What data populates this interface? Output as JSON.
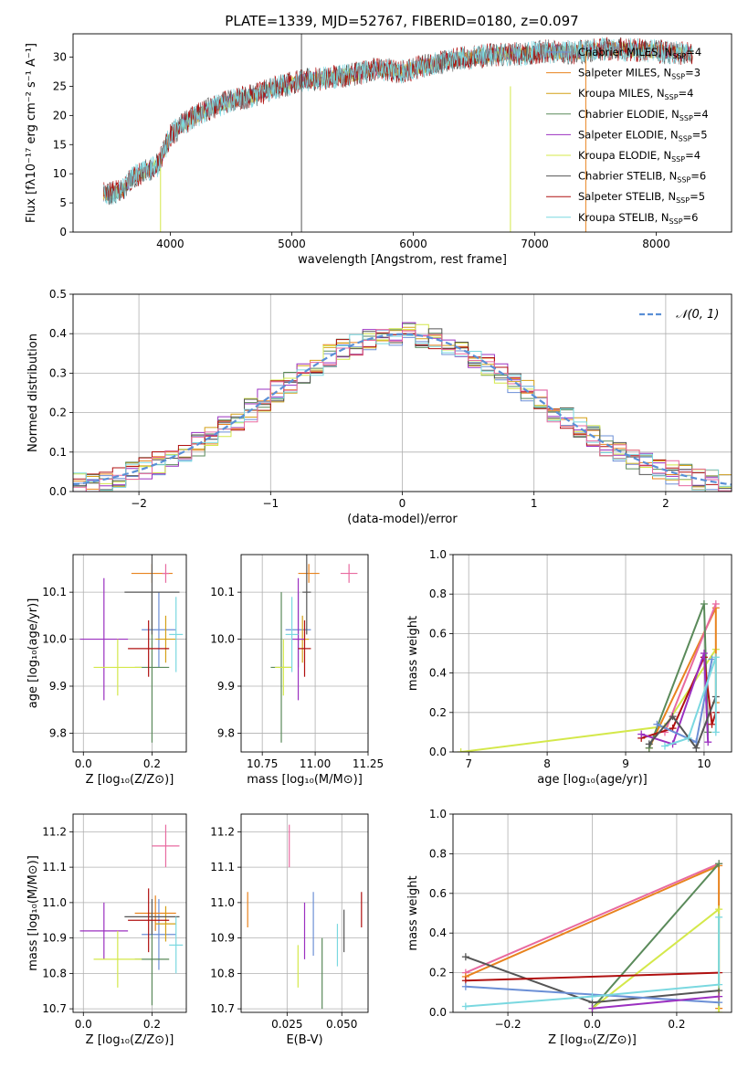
{
  "title": "PLATE=1339, MJD=52767, FIBERID=0180, z=0.097",
  "styles": {
    "Chabrier MILES": "#6b8fd6",
    "Salpeter MILES": "#e8831e",
    "Kroupa MILES": "#d4a017",
    "Chabrier ELODIE": "#5a8a5a",
    "Salpeter ELODIE": "#9b30c0",
    "Kroupa ELODIE": "#d4e84a",
    "Chabrier STELIB": "#555555",
    "Salpeter STELIB": "#b01010",
    "Kroupa STELIB": "#7ad8e0",
    "normal_curve": "#5a8fd6",
    "hist_pink": "#e86aa0"
  },
  "chart_data": [
    {
      "id": "spectrum",
      "type": "line",
      "xlabel": "wavelength [Angstrom, rest frame]",
      "ylabel": "Flux [fλ10⁻¹⁷ erg cm⁻² s⁻¹ A⁻¹]",
      "xlim": [
        3200,
        8620
      ],
      "ylim": [
        0,
        34
      ],
      "xticks": [
        "4000",
        "5000",
        "6000",
        "7000",
        "8000"
      ],
      "yticks": [
        "0",
        "5",
        "10",
        "15",
        "20",
        "25",
        "30"
      ],
      "legend_position": "top-right",
      "legend": [
        {
          "label": "Chabrier MILES, N_SSP=4",
          "main": "Chabrier MILES, N",
          "sub": "SSP",
          "tail": "=4"
        },
        {
          "label": "Salpeter MILES, N_SSP=3",
          "main": "Salpeter MILES, N",
          "sub": "SSP",
          "tail": "=3"
        },
        {
          "label": "Kroupa MILES, N_SSP=4",
          "main": "Kroupa MILES, N",
          "sub": "SSP",
          "tail": "=4"
        },
        {
          "label": "Chabrier ELODIE, N_SSP=4",
          "main": "Chabrier ELODIE, N",
          "sub": "SSP",
          "tail": "=4"
        },
        {
          "label": "Salpeter ELODIE, N_SSP=5",
          "main": "Salpeter ELODIE, N",
          "sub": "SSP",
          "tail": "=5"
        },
        {
          "label": "Kroupa ELODIE, N_SSP=4",
          "main": "Kroupa ELODIE, N",
          "sub": "SSP",
          "tail": "=4"
        },
        {
          "label": "Chabrier STELIB, N_SSP=6",
          "main": "Chabrier STELIB, N",
          "sub": "SSP",
          "tail": "=6"
        },
        {
          "label": "Salpeter STELIB, N_SSP=5",
          "main": "Salpeter STELIB, N",
          "sub": "SSP",
          "tail": "=5"
        },
        {
          "label": "Kroupa STELIB, N_SSP=6",
          "main": "Kroupa STELIB, N",
          "sub": "SSP",
          "tail": "=6"
        }
      ],
      "continuum": {
        "x": [
          3450,
          3600,
          3700,
          3800,
          3900,
          4000,
          4100,
          4300,
          4500,
          4700,
          4900,
          5100,
          5300,
          5500,
          5700,
          5900,
          6100,
          6300,
          6500,
          6700,
          6900,
          7100,
          7300,
          7420,
          7600,
          8000,
          8300
        ],
        "y": [
          6.5,
          7.0,
          9.5,
          10.5,
          11.5,
          16.5,
          18.5,
          21.0,
          22.5,
          23.5,
          25.0,
          26.0,
          26.5,
          27.0,
          28.0,
          27.5,
          28.5,
          29.5,
          30.0,
          30.5,
          30.5,
          31.0,
          30.8,
          31.0,
          31.5,
          31.0,
          30.5
        ]
      },
      "spikes": [
        {
          "x": 5080,
          "y0": 0,
          "y1": 34,
          "series": "Chabrier STELIB"
        },
        {
          "x": 6800,
          "y0": 0,
          "y1": 25,
          "series": "Kroupa ELODIE"
        },
        {
          "x": 7420,
          "y0": 0,
          "y1": 31,
          "series": "Salpeter MILES"
        },
        {
          "x": 3920,
          "y0": 0,
          "y1": 11,
          "series": "Kroupa ELODIE"
        }
      ]
    },
    {
      "id": "residuals",
      "type": "bar",
      "xlabel": "(data-model)/error",
      "ylabel": "Normed distribution",
      "xlim": [
        -2.5,
        2.5
      ],
      "ylim": [
        0,
        0.5
      ],
      "xticks": [
        "−2",
        "−1",
        "0",
        "1",
        "2"
      ],
      "yticks": [
        "0.0",
        "0.1",
        "0.2",
        "0.3",
        "0.4",
        "0.5"
      ],
      "bin_width": 0.1,
      "grid": true,
      "legend": [
        {
          "label": "N(0,1)",
          "main": "𝒩(0, 1)"
        }
      ],
      "legend_position": "top-right",
      "normal": {
        "mu": 0,
        "sigma": 1
      }
    },
    {
      "id": "age-vs-Z",
      "type": "scatter",
      "xlabel": "Z [log₁₀(Z/Z⊙)]",
      "ylabel": "age  [log₁₀(age/yr)]",
      "xlim": [
        -0.03,
        0.3
      ],
      "ylim": [
        9.76,
        10.18
      ],
      "xticks": [
        "0.0",
        "0.2"
      ],
      "yticks": [
        "9.8",
        "9.9",
        "10.0",
        "10.1"
      ],
      "points": [
        {
          "series": "Chabrier MILES",
          "x": 0.22,
          "y": 10.02,
          "ex": 0.05,
          "ey": 0.08
        },
        {
          "series": "Salpeter MILES",
          "x": 0.2,
          "y": 10.14,
          "ex": 0.06,
          "ey": 0.02
        },
        {
          "series": "Kroupa MILES",
          "x": 0.24,
          "y": 10.0,
          "ex": 0.03,
          "ey": 0.05
        },
        {
          "series": "Chabrier ELODIE",
          "x": 0.2,
          "y": 9.94,
          "ex": 0.05,
          "ey": 0.16
        },
        {
          "series": "Salpeter ELODIE",
          "x": 0.06,
          "y": 10.0,
          "ex": 0.07,
          "ey": 0.13
        },
        {
          "series": "Kroupa ELODIE",
          "x": 0.1,
          "y": 9.94,
          "ex": 0.07,
          "ey": 0.06
        },
        {
          "series": "Chabrier STELIB",
          "x": 0.2,
          "y": 10.1,
          "ex": 0.08,
          "ey": 0.09
        },
        {
          "series": "Salpeter STELIB",
          "x": 0.19,
          "y": 9.98,
          "ex": 0.06,
          "ey": 0.06
        },
        {
          "series": "Kroupa STELIB",
          "x": 0.27,
          "y": 10.01,
          "ex": 0.02,
          "ey": 0.08
        },
        {
          "series": "hist_pink",
          "x": 0.24,
          "y": 10.14,
          "ex": 0.01,
          "ey": 0.02
        }
      ]
    },
    {
      "id": "age-vs-mass",
      "type": "scatter",
      "xlabel": "mass [log₁₀(M/M⊙)]",
      "ylabel": "",
      "xlim": [
        10.65,
        11.25
      ],
      "ylim": [
        9.76,
        10.18
      ],
      "xticks": [
        "10.75",
        "11.00",
        "11.25"
      ],
      "yticks": [
        "9.8",
        "9.9",
        "10.0",
        "10.1"
      ],
      "points": [
        {
          "series": "Chabrier MILES",
          "x": 10.92,
          "y": 10.02,
          "ex": 0.06,
          "ey": 0.08
        },
        {
          "series": "Salpeter MILES",
          "x": 10.97,
          "y": 10.14,
          "ex": 0.05,
          "ey": 0.02
        },
        {
          "series": "Kroupa MILES",
          "x": 10.94,
          "y": 10.0,
          "ex": 0.03,
          "ey": 0.05
        },
        {
          "series": "Chabrier ELODIE",
          "x": 10.84,
          "y": 9.94,
          "ex": 0.05,
          "ey": 0.16
        },
        {
          "series": "Salpeter ELODIE",
          "x": 10.92,
          "y": 10.0,
          "ex": 0.03,
          "ey": 0.13
        },
        {
          "series": "Kroupa ELODIE",
          "x": 10.85,
          "y": 9.94,
          "ex": 0.04,
          "ey": 0.06
        },
        {
          "series": "Chabrier STELIB",
          "x": 10.96,
          "y": 10.1,
          "ex": 0.02,
          "ey": 0.09
        },
        {
          "series": "Salpeter STELIB",
          "x": 10.95,
          "y": 9.98,
          "ex": 0.03,
          "ey": 0.06
        },
        {
          "series": "Kroupa STELIB",
          "x": 10.89,
          "y": 10.01,
          "ex": 0.03,
          "ey": 0.08
        },
        {
          "series": "hist_pink",
          "x": 11.16,
          "y": 10.14,
          "ex": 0.04,
          "ey": 0.02
        }
      ]
    },
    {
      "id": "weight-vs-age",
      "type": "line",
      "xlabel": "age  [log₁₀(age/yr)]",
      "ylabel": "mass weight",
      "xlim": [
        6.8,
        10.35
      ],
      "ylim": [
        0,
        1
      ],
      "xticks": [
        "7",
        "8",
        "9",
        "10"
      ],
      "yticks": [
        "0.0",
        "0.2",
        "0.4",
        "0.6",
        "0.8",
        "1.0"
      ],
      "series": [
        {
          "series": "Kroupa ELODIE",
          "x": [
            6.9,
            9.5,
            10.15
          ],
          "y": [
            0.0,
            0.13,
            0.52
          ]
        },
        {
          "series": "Salpeter MILES",
          "x": [
            9.3,
            10.15,
            10.15
          ],
          "y": [
            0.02,
            0.73,
            0.25
          ]
        },
        {
          "series": "hist_pink",
          "x": [
            9.5,
            10.15
          ],
          "y": [
            0.1,
            0.75
          ]
        },
        {
          "series": "Chabrier ELODIE",
          "x": [
            9.3,
            10.0,
            10.05
          ],
          "y": [
            0.02,
            0.75,
            0.1
          ]
        },
        {
          "series": "Salpeter STELIB",
          "x": [
            9.2,
            9.6,
            10.0,
            10.1,
            10.15
          ],
          "y": [
            0.07,
            0.12,
            0.48,
            0.14,
            0.2
          ]
        },
        {
          "series": "Salpeter ELODIE",
          "x": [
            9.2,
            9.6,
            10.0,
            10.05
          ],
          "y": [
            0.09,
            0.04,
            0.5,
            0.05
          ]
        },
        {
          "series": "Chabrier MILES",
          "x": [
            9.4,
            9.9,
            10.1
          ],
          "y": [
            0.14,
            0.05,
            0.47
          ]
        },
        {
          "series": "Chabrier STELIB",
          "x": [
            9.3,
            9.6,
            9.9,
            10.15
          ],
          "y": [
            0.04,
            0.18,
            0.02,
            0.28
          ]
        },
        {
          "series": "Kroupa STELIB",
          "x": [
            9.5,
            9.8,
            10.15,
            10.15
          ],
          "y": [
            0.03,
            0.07,
            0.48,
            0.1
          ]
        }
      ]
    },
    {
      "id": "mass-vs-Z",
      "type": "scatter",
      "xlabel": "Z [log₁₀(Z/Z⊙)]",
      "ylabel": "mass [log₁₀(M/M⊙)]",
      "xlim": [
        -0.03,
        0.3
      ],
      "ylim": [
        10.69,
        11.25
      ],
      "xticks": [
        "0.0",
        "0.2"
      ],
      "yticks": [
        "10.7",
        "10.8",
        "10.9",
        "11.0",
        "11.1",
        "11.2"
      ],
      "points": [
        {
          "series": "Chabrier MILES",
          "x": 0.22,
          "y": 10.91,
          "ex": 0.05,
          "ey": 0.1
        },
        {
          "series": "Salpeter MILES",
          "x": 0.21,
          "y": 10.97,
          "ex": 0.06,
          "ey": 0.05
        },
        {
          "series": "Kroupa MILES",
          "x": 0.24,
          "y": 10.94,
          "ex": 0.03,
          "ey": 0.05
        },
        {
          "series": "Chabrier ELODIE",
          "x": 0.2,
          "y": 10.84,
          "ex": 0.05,
          "ey": 0.13
        },
        {
          "series": "Salpeter ELODIE",
          "x": 0.06,
          "y": 10.92,
          "ex": 0.07,
          "ey": 0.08
        },
        {
          "series": "Kroupa ELODIE",
          "x": 0.1,
          "y": 10.84,
          "ex": 0.07,
          "ey": 0.08
        },
        {
          "series": "Chabrier STELIB",
          "x": 0.2,
          "y": 10.96,
          "ex": 0.08,
          "ey": 0.05
        },
        {
          "series": "Salpeter STELIB",
          "x": 0.19,
          "y": 10.95,
          "ex": 0.06,
          "ey": 0.09
        },
        {
          "series": "Kroupa STELIB",
          "x": 0.27,
          "y": 10.88,
          "ex": 0.02,
          "ey": 0.08
        },
        {
          "series": "hist_pink",
          "x": 0.24,
          "y": 11.16,
          "ex": 0.04,
          "ey": 0.06
        }
      ]
    },
    {
      "id": "mass-vs-EBV",
      "type": "scatter",
      "xlabel": "E(B-V)",
      "ylabel": "",
      "xlim": [
        0.004,
        0.062
      ],
      "ylim": [
        10.69,
        11.25
      ],
      "xticks": [
        "0.025",
        "0.050"
      ],
      "yticks": [
        "10.7",
        "10.8",
        "10.9",
        "11.0",
        "11.1",
        "11.2"
      ],
      "points": [
        {
          "series": "Salpeter MILES",
          "x": 0.007,
          "y": 10.98,
          "ex": 0,
          "ey": 0.05
        },
        {
          "series": "hist_pink",
          "x": 0.026,
          "y": 11.16,
          "ex": 0,
          "ey": 0.06
        },
        {
          "series": "Kroupa ELODIE",
          "x": 0.03,
          "y": 10.82,
          "ex": 0,
          "ey": 0.06
        },
        {
          "series": "Salpeter ELODIE",
          "x": 0.033,
          "y": 10.92,
          "ex": 0,
          "ey": 0.08
        },
        {
          "series": "Chabrier MILES",
          "x": 0.037,
          "y": 10.94,
          "ex": 0,
          "ey": 0.09
        },
        {
          "series": "Chabrier ELODIE",
          "x": 0.041,
          "y": 10.8,
          "ex": 0,
          "ey": 0.1
        },
        {
          "series": "Kroupa STELIB",
          "x": 0.048,
          "y": 10.88,
          "ex": 0,
          "ey": 0.06
        },
        {
          "series": "Chabrier STELIB",
          "x": 0.051,
          "y": 10.92,
          "ex": 0,
          "ey": 0.06
        },
        {
          "series": "Salpeter STELIB",
          "x": 0.059,
          "y": 10.98,
          "ex": 0,
          "ey": 0.05
        }
      ]
    },
    {
      "id": "weight-vs-Z",
      "type": "line",
      "xlabel": "Z [log₁₀(Z/Z⊙)]",
      "ylabel": "mass weight",
      "xlim": [
        -0.33,
        0.33
      ],
      "ylim": [
        0,
        1
      ],
      "xticks": [
        "−0.2",
        "0.0",
        "0.2"
      ],
      "yticks": [
        "0.0",
        "0.2",
        "0.4",
        "0.6",
        "0.8",
        "1.0"
      ],
      "series": [
        {
          "series": "hist_pink",
          "x": [
            -0.3,
            0.3
          ],
          "y": [
            0.2,
            0.75
          ]
        },
        {
          "series": "Salpeter MILES",
          "x": [
            -0.3,
            0.3,
            0.3
          ],
          "y": [
            0.18,
            0.74,
            0.02
          ]
        },
        {
          "series": "Chabrier ELODIE",
          "x": [
            0.0,
            0.3
          ],
          "y": [
            0.02,
            0.75
          ]
        },
        {
          "series": "Kroupa ELODIE",
          "x": [
            0.0,
            0.3,
            0.3
          ],
          "y": [
            0.02,
            0.52,
            0.0
          ]
        },
        {
          "series": "Chabrier STELIB",
          "x": [
            -0.3,
            0.0,
            0.3
          ],
          "y": [
            0.28,
            0.05,
            0.11
          ]
        },
        {
          "series": "Salpeter STELIB",
          "x": [
            -0.3,
            0.3
          ],
          "y": [
            0.16,
            0.2
          ]
        },
        {
          "series": "Chabrier MILES",
          "x": [
            -0.3,
            0.3
          ],
          "y": [
            0.13,
            0.05
          ]
        },
        {
          "series": "Salpeter ELODIE",
          "x": [
            0.0,
            0.3
          ],
          "y": [
            0.02,
            0.08
          ]
        },
        {
          "series": "Kroupa STELIB",
          "x": [
            -0.3,
            0.0,
            0.3,
            0.3
          ],
          "y": [
            0.03,
            0.08,
            0.14,
            0.48
          ]
        }
      ]
    }
  ]
}
